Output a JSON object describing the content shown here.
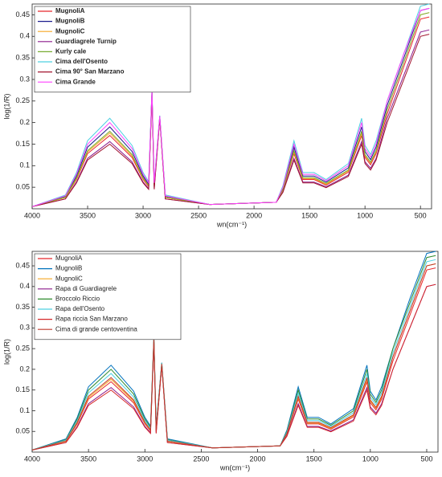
{
  "chart_data": [
    {
      "type": "line",
      "xlabel": "wn(cm⁻¹)",
      "ylabel": "log(1/R)",
      "legend_bold": true,
      "legend": "upper left",
      "xlim": [
        4000,
        400
      ],
      "xticks": [
        4000,
        3500,
        3000,
        2500,
        2000,
        1500,
        1000,
        500
      ],
      "ylim": [
        0,
        0.475
      ],
      "yticks": [
        0.05,
        0.1,
        0.15,
        0.2,
        0.25,
        0.3,
        0.35,
        0.4,
        0.45
      ],
      "x": [
        4000,
        3700,
        3600,
        3500,
        3300,
        3100,
        3000,
        2950,
        2920,
        2900,
        2850,
        2800,
        2400,
        1800,
        1740,
        1640,
        1560,
        1460,
        1350,
        1150,
        1030,
        1000,
        950,
        900,
        800,
        650,
        500,
        420
      ],
      "series": [
        {
          "name": "MugnoliA",
          "color": "#e8262a",
          "values": [
            0.005,
            0.026,
            0.068,
            0.128,
            0.17,
            0.119,
            0.068,
            0.051,
            0.27,
            0.051,
            0.212,
            0.026,
            0.01,
            0.015,
            0.043,
            0.128,
            0.068,
            0.068,
            0.055,
            0.085,
            0.17,
            0.119,
            0.102,
            0.128,
            0.22,
            0.33,
            0.44,
            0.445
          ]
        },
        {
          "name": "MugnoliB",
          "color": "#1a1a8c",
          "values": [
            0.005,
            0.029,
            0.076,
            0.143,
            0.19,
            0.133,
            0.076,
            0.057,
            0.275,
            0.057,
            0.215,
            0.029,
            0.01,
            0.015,
            0.048,
            0.143,
            0.076,
            0.076,
            0.062,
            0.095,
            0.19,
            0.133,
            0.114,
            0.143,
            0.24,
            0.35,
            0.46,
            0.465
          ]
        },
        {
          "name": "MugnoliC",
          "color": "#f5a623",
          "values": [
            0.005,
            0.026,
            0.07,
            0.132,
            0.176,
            0.123,
            0.07,
            0.053,
            0.272,
            0.053,
            0.213,
            0.026,
            0.01,
            0.015,
            0.044,
            0.132,
            0.07,
            0.07,
            0.057,
            0.088,
            0.176,
            0.123,
            0.106,
            0.132,
            0.23,
            0.34,
            0.45,
            0.455
          ]
        },
        {
          "name": "Guardiagrele Turnip",
          "color": "#8b1a8b",
          "values": [
            0.005,
            0.023,
            0.062,
            0.117,
            0.156,
            0.109,
            0.062,
            0.047,
            0.268,
            0.047,
            0.21,
            0.023,
            0.01,
            0.015,
            0.039,
            0.117,
            0.062,
            0.062,
            0.051,
            0.078,
            0.156,
            0.109,
            0.094,
            0.117,
            0.21,
            0.31,
            0.41,
            0.415
          ]
        },
        {
          "name": "Kurly cale",
          "color": "#77ac30",
          "values": [
            0.005,
            0.027,
            0.072,
            0.135,
            0.18,
            0.126,
            0.072,
            0.054,
            0.273,
            0.054,
            0.213,
            0.027,
            0.01,
            0.015,
            0.045,
            0.135,
            0.072,
            0.072,
            0.059,
            0.09,
            0.18,
            0.126,
            0.108,
            0.135,
            0.23,
            0.34,
            0.45,
            0.455
          ]
        },
        {
          "name": "Cima dell'Osento",
          "color": "#4dd0e1",
          "values": [
            0.005,
            0.032,
            0.084,
            0.158,
            0.21,
            0.147,
            0.084,
            0.063,
            0.278,
            0.063,
            0.216,
            0.032,
            0.01,
            0.015,
            0.053,
            0.158,
            0.084,
            0.084,
            0.068,
            0.105,
            0.21,
            0.147,
            0.126,
            0.158,
            0.25,
            0.36,
            0.47,
            0.475
          ]
        },
        {
          "name": "Cima 90° San Marzano",
          "color": "#a2142f",
          "values": [
            0.005,
            0.023,
            0.06,
            0.113,
            0.15,
            0.105,
            0.06,
            0.045,
            0.268,
            0.045,
            0.21,
            0.023,
            0.01,
            0.015,
            0.038,
            0.113,
            0.06,
            0.06,
            0.049,
            0.075,
            0.15,
            0.105,
            0.09,
            0.113,
            0.2,
            0.3,
            0.4,
            0.405
          ]
        },
        {
          "name": "Cima Grande",
          "color": "#ff40ff",
          "values": [
            0.005,
            0.03,
            0.08,
            0.15,
            0.2,
            0.14,
            0.08,
            0.06,
            0.276,
            0.06,
            0.215,
            0.03,
            0.01,
            0.015,
            0.05,
            0.15,
            0.08,
            0.08,
            0.065,
            0.1,
            0.2,
            0.14,
            0.12,
            0.15,
            0.25,
            0.36,
            0.46,
            0.465
          ]
        }
      ]
    },
    {
      "type": "line",
      "xlabel": "wn(cm⁻¹)",
      "ylabel": "log(1/R)",
      "legend_bold": false,
      "legend": "upper left",
      "xlim": [
        4000,
        400
      ],
      "xticks": [
        4000,
        3500,
        3000,
        2500,
        2000,
        1500,
        1000,
        500
      ],
      "ylim": [
        0,
        0.485
      ],
      "yticks": [
        0.05,
        0.1,
        0.15,
        0.2,
        0.25,
        0.3,
        0.35,
        0.4,
        0.45
      ],
      "x": [
        4000,
        3700,
        3600,
        3500,
        3300,
        3100,
        3000,
        2950,
        2920,
        2900,
        2850,
        2800,
        2400,
        1800,
        1740,
        1640,
        1560,
        1460,
        1350,
        1150,
        1030,
        1000,
        950,
        900,
        800,
        650,
        500,
        420
      ],
      "series": [
        {
          "name": "MugnoliA",
          "color": "#e8262a",
          "values": [
            0.005,
            0.026,
            0.068,
            0.128,
            0.17,
            0.119,
            0.068,
            0.051,
            0.27,
            0.051,
            0.212,
            0.026,
            0.01,
            0.015,
            0.043,
            0.128,
            0.068,
            0.068,
            0.055,
            0.085,
            0.17,
            0.119,
            0.102,
            0.128,
            0.22,
            0.33,
            0.44,
            0.445
          ]
        },
        {
          "name": "MugnoliB",
          "color": "#0072bd",
          "values": [
            0.005,
            0.032,
            0.084,
            0.158,
            0.21,
            0.147,
            0.084,
            0.063,
            0.278,
            0.063,
            0.216,
            0.032,
            0.01,
            0.015,
            0.053,
            0.158,
            0.084,
            0.084,
            0.068,
            0.105,
            0.21,
            0.147,
            0.126,
            0.158,
            0.25,
            0.37,
            0.48,
            0.485
          ]
        },
        {
          "name": "MugnoliC",
          "color": "#f5a623",
          "values": [
            0.005,
            0.026,
            0.07,
            0.132,
            0.176,
            0.123,
            0.07,
            0.053,
            0.272,
            0.053,
            0.213,
            0.026,
            0.01,
            0.015,
            0.044,
            0.132,
            0.07,
            0.07,
            0.057,
            0.088,
            0.176,
            0.123,
            0.106,
            0.132,
            0.23,
            0.34,
            0.45,
            0.455
          ]
        },
        {
          "name": "Rapa di Guardiagrele",
          "color": "#8b1a8b",
          "values": [
            0.005,
            0.023,
            0.062,
            0.117,
            0.156,
            0.109,
            0.062,
            0.047,
            0.268,
            0.047,
            0.21,
            0.023,
            0.01,
            0.015,
            0.039,
            0.117,
            0.062,
            0.062,
            0.051,
            0.078,
            0.156,
            0.109,
            0.094,
            0.117,
            0.2,
            0.3,
            0.4,
            0.405
          ]
        },
        {
          "name": "Broccolo Riccio",
          "color": "#2e8b2e",
          "values": [
            0.005,
            0.03,
            0.08,
            0.15,
            0.2,
            0.14,
            0.08,
            0.06,
            0.276,
            0.06,
            0.215,
            0.03,
            0.01,
            0.015,
            0.05,
            0.15,
            0.08,
            0.08,
            0.065,
            0.1,
            0.2,
            0.14,
            0.12,
            0.15,
            0.25,
            0.36,
            0.47,
            0.475
          ]
        },
        {
          "name": "Rapa dell'Osento",
          "color": "#4dd0e1",
          "values": [
            0.005,
            0.029,
            0.076,
            0.143,
            0.19,
            0.133,
            0.076,
            0.057,
            0.275,
            0.057,
            0.215,
            0.029,
            0.01,
            0.015,
            0.048,
            0.143,
            0.076,
            0.076,
            0.062,
            0.095,
            0.19,
            0.133,
            0.114,
            0.143,
            0.24,
            0.35,
            0.46,
            0.465
          ]
        },
        {
          "name": "Rapa riccia San Marzano",
          "color": "#d62728",
          "values": [
            0.005,
            0.023,
            0.06,
            0.113,
            0.15,
            0.105,
            0.06,
            0.045,
            0.268,
            0.045,
            0.21,
            0.023,
            0.01,
            0.015,
            0.038,
            0.113,
            0.06,
            0.06,
            0.049,
            0.075,
            0.15,
            0.105,
            0.09,
            0.113,
            0.2,
            0.3,
            0.4,
            0.405
          ]
        },
        {
          "name": "Cima di grande centoventina",
          "color": "#c0392b",
          "values": [
            0.005,
            0.027,
            0.072,
            0.135,
            0.18,
            0.126,
            0.072,
            0.054,
            0.273,
            0.054,
            0.213,
            0.027,
            0.01,
            0.015,
            0.045,
            0.135,
            0.072,
            0.072,
            0.059,
            0.09,
            0.18,
            0.126,
            0.108,
            0.135,
            0.23,
            0.34,
            0.45,
            0.455
          ]
        }
      ]
    }
  ]
}
